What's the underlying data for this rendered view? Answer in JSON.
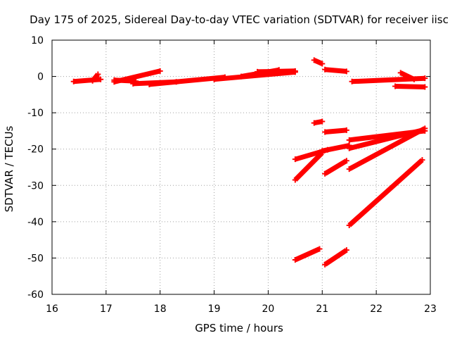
{
  "chart_data": {
    "type": "scatter",
    "title": "Day 175 of 2025, Sidereal Day-to-day VTEC variation (SDTVAR) for receiver iisc",
    "xlabel": "GPS time / hours",
    "ylabel": "SDTVAR / TECUs",
    "xlim": [
      16,
      23
    ],
    "ylim": [
      -60,
      10
    ],
    "xticks": [
      "16",
      "17",
      "18",
      "19",
      "20",
      "21",
      "22",
      "23"
    ],
    "yticks": [
      "10",
      "0",
      "-10",
      "-20",
      "-30",
      "-40",
      "-50",
      "-60"
    ],
    "grid": true,
    "legend": "none",
    "marker": "plus",
    "color": "#ff0000",
    "series": [
      {
        "x": [
          16.4,
          16.9
        ],
        "y": [
          -1.4,
          -0.8
        ]
      },
      {
        "x": [
          16.75,
          16.85
        ],
        "y": [
          -1.2,
          0.6
        ]
      },
      {
        "x": [
          17.15,
          17.55
        ],
        "y": [
          -1.0,
          -1.3
        ]
      },
      {
        "x": [
          17.15,
          18.0
        ],
        "y": [
          -1.5,
          1.5
        ]
      },
      {
        "x": [
          17.5,
          18.3
        ],
        "y": [
          -2.0,
          -1.5
        ]
      },
      {
        "x": [
          17.8,
          19.2
        ],
        "y": [
          -2.2,
          -0.2
        ]
      },
      {
        "x": [
          19.0,
          20.5
        ],
        "y": [
          -0.8,
          1.2
        ]
      },
      {
        "x": [
          19.5,
          20.2
        ],
        "y": [
          0.0,
          1.8
        ]
      },
      {
        "x": [
          19.8,
          20.5
        ],
        "y": [
          1.3,
          1.5
        ]
      },
      {
        "x": [
          20.85,
          21.0
        ],
        "y": [
          4.5,
          3.5
        ]
      },
      {
        "x": [
          21.05,
          21.45
        ],
        "y": [
          1.9,
          1.4
        ]
      },
      {
        "x": [
          21.55,
          22.9
        ],
        "y": [
          -1.4,
          -0.5
        ]
      },
      {
        "x": [
          22.45,
          22.7
        ],
        "y": [
          1.0,
          -0.8
        ]
      },
      {
        "x": [
          22.35,
          22.9
        ],
        "y": [
          -2.7,
          -2.9
        ]
      },
      {
        "x": [
          20.85,
          21.0
        ],
        "y": [
          -12.8,
          -12.4
        ]
      },
      {
        "x": [
          21.05,
          21.45
        ],
        "y": [
          -15.3,
          -14.8
        ]
      },
      {
        "x": [
          20.5,
          21.1
        ],
        "y": [
          -22.8,
          -20.2
        ]
      },
      {
        "x": [
          21.0,
          21.5
        ],
        "y": [
          -20.5,
          -19.0
        ]
      },
      {
        "x": [
          21.5,
          22.9
        ],
        "y": [
          -17.5,
          -15.0
        ]
      },
      {
        "x": [
          21.5,
          22.85
        ],
        "y": [
          -19.8,
          -14.8
        ]
      },
      {
        "x": [
          21.5,
          22.9
        ],
        "y": [
          -25.5,
          -14.3
        ]
      },
      {
        "x": [
          20.5,
          21.0
        ],
        "y": [
          -28.5,
          -21.0
        ]
      },
      {
        "x": [
          21.05,
          21.45
        ],
        "y": [
          -26.8,
          -23.2
        ]
      },
      {
        "x": [
          21.5,
          22.85
        ],
        "y": [
          -41.0,
          -23.0
        ]
      },
      {
        "x": [
          20.5,
          20.95
        ],
        "y": [
          -50.5,
          -47.5
        ]
      },
      {
        "x": [
          21.05,
          21.45
        ],
        "y": [
          -51.8,
          -47.8
        ]
      }
    ]
  }
}
